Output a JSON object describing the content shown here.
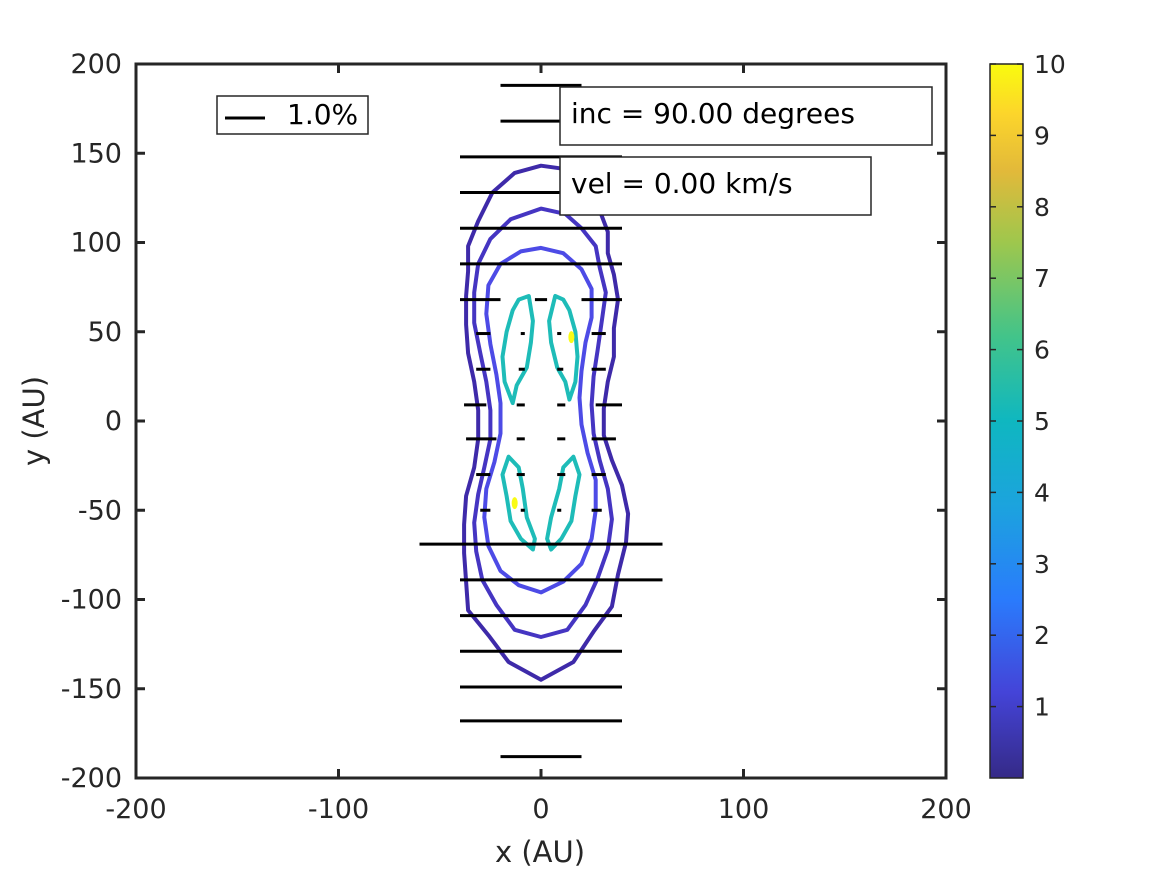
{
  "chart_data": {
    "type": "contour",
    "xlabel": "x (AU)",
    "ylabel": "y (AU)",
    "xlim": [
      -200,
      200
    ],
    "ylim": [
      -200,
      200
    ],
    "xticks": [
      -200,
      -100,
      0,
      100,
      200
    ],
    "yticks": [
      200,
      150,
      100,
      50,
      0,
      -50,
      -100,
      -150,
      -200
    ],
    "annotations": {
      "inc": "inc = 90.00 degrees",
      "vel": "vel =  0.00 km/s",
      "legend_scale": "1.0%"
    },
    "colorbar": {
      "range": [
        0,
        10
      ],
      "ticks": [
        10,
        9,
        8,
        7,
        6,
        5,
        4,
        3,
        2,
        1
      ],
      "colors": [
        "#3e26a8",
        "#4a48e8",
        "#2f7efd",
        "#1ba8dc",
        "#13bdb5",
        "#4bc78a",
        "#9dc84f",
        "#e4bb3e",
        "#fbd62f",
        "#f9fb15"
      ]
    },
    "contours": [
      {
        "level": 0.5,
        "color": "#3e2aa9",
        "points": [
          [
            0,
            143
          ],
          [
            13,
            141
          ],
          [
            22,
            131
          ],
          [
            29,
            118
          ],
          [
            33,
            106
          ],
          [
            33,
            94
          ],
          [
            36,
            82
          ],
          [
            38,
            68
          ],
          [
            36,
            52
          ],
          [
            36,
            36
          ],
          [
            33,
            22
          ],
          [
            31,
            7
          ],
          [
            31,
            -8
          ],
          [
            35,
            -22
          ],
          [
            40,
            -36
          ],
          [
            43,
            -52
          ],
          [
            42,
            -68
          ],
          [
            38,
            -86
          ],
          [
            35,
            -104
          ],
          [
            26,
            -118
          ],
          [
            16,
            -135
          ],
          [
            0,
            -145
          ],
          [
            -16,
            -135
          ],
          [
            -26,
            -120
          ],
          [
            -36,
            -106
          ],
          [
            -37,
            -90
          ],
          [
            -38,
            -74
          ],
          [
            -38,
            -58
          ],
          [
            -37,
            -42
          ],
          [
            -33,
            -26
          ],
          [
            -31,
            -10
          ],
          [
            -31,
            6
          ],
          [
            -33,
            22
          ],
          [
            -36,
            38
          ],
          [
            -37,
            54
          ],
          [
            -37,
            70
          ],
          [
            -36,
            84
          ],
          [
            -36,
            98
          ],
          [
            -31,
            112
          ],
          [
            -24,
            128
          ],
          [
            -13,
            139
          ]
        ]
      },
      {
        "level": 1.0,
        "color": "#4535c2",
        "points": [
          [
            0,
            119
          ],
          [
            12,
            116
          ],
          [
            20,
            108
          ],
          [
            27,
            98
          ],
          [
            29,
            86
          ],
          [
            32,
            72
          ],
          [
            30,
            56
          ],
          [
            28,
            40
          ],
          [
            26,
            25
          ],
          [
            25,
            9
          ],
          [
            26,
            -7
          ],
          [
            29,
            -22
          ],
          [
            33,
            -38
          ],
          [
            35,
            -55
          ],
          [
            33,
            -72
          ],
          [
            28,
            -88
          ],
          [
            22,
            -103
          ],
          [
            13,
            -117
          ],
          [
            0,
            -121
          ],
          [
            -13,
            -117
          ],
          [
            -22,
            -103
          ],
          [
            -29,
            -89
          ],
          [
            -32,
            -73
          ],
          [
            -33,
            -57
          ],
          [
            -31,
            -41
          ],
          [
            -28,
            -26
          ],
          [
            -25,
            -10
          ],
          [
            -25,
            6
          ],
          [
            -27,
            22
          ],
          [
            -30,
            38
          ],
          [
            -33,
            55
          ],
          [
            -33,
            72
          ],
          [
            -31,
            88
          ],
          [
            -25,
            102
          ],
          [
            -15,
            113
          ]
        ]
      },
      {
        "level": 2.0,
        "color": "#4d4be6",
        "points": [
          [
            0,
            97
          ],
          [
            11,
            94
          ],
          [
            20,
            85
          ],
          [
            25,
            74
          ],
          [
            25,
            58
          ],
          [
            22,
            44
          ],
          [
            20,
            28
          ],
          [
            19,
            13
          ],
          [
            20,
            -2
          ],
          [
            23,
            -18
          ],
          [
            27,
            -33
          ],
          [
            27,
            -50
          ],
          [
            25,
            -66
          ],
          [
            20,
            -80
          ],
          [
            11,
            -90
          ],
          [
            0,
            -96
          ],
          [
            -11,
            -92
          ],
          [
            -20,
            -84
          ],
          [
            -26,
            -70
          ],
          [
            -28,
            -54
          ],
          [
            -27,
            -38
          ],
          [
            -23,
            -23
          ],
          [
            -20,
            -7
          ],
          [
            -20,
            10
          ],
          [
            -22,
            26
          ],
          [
            -25,
            43
          ],
          [
            -27,
            60
          ],
          [
            -26,
            76
          ],
          [
            -20,
            88
          ],
          [
            -10,
            95
          ]
        ]
      },
      {
        "level": 5.0,
        "color": "#1ebcb8",
        "points": [
          [
            -11,
            68
          ],
          [
            -6,
            70
          ],
          [
            -4,
            56
          ],
          [
            -5,
            44
          ],
          [
            -7,
            30
          ],
          [
            -12,
            20
          ],
          [
            -14,
            10
          ],
          [
            -18,
            22
          ],
          [
            -19,
            36
          ],
          [
            -17,
            50
          ],
          [
            -14,
            62
          ]
        ]
      },
      {
        "level": 5.0,
        "color": "#1ebcb8",
        "points": [
          [
            11,
            68
          ],
          [
            7,
            70
          ],
          [
            4,
            56
          ],
          [
            5,
            44
          ],
          [
            8,
            30
          ],
          [
            12,
            22
          ],
          [
            14,
            12
          ],
          [
            17,
            22
          ],
          [
            18,
            36
          ],
          [
            17,
            50
          ],
          [
            14,
            62
          ]
        ]
      },
      {
        "level": 5.0,
        "color": "#1ebcb8",
        "points": [
          [
            -16,
            -20
          ],
          [
            -11,
            -26
          ],
          [
            -9,
            -38
          ],
          [
            -7,
            -54
          ],
          [
            -3,
            -66
          ],
          [
            -4,
            -72
          ],
          [
            -10,
            -66
          ],
          [
            -15,
            -56
          ],
          [
            -17,
            -42
          ],
          [
            -19,
            -30
          ]
        ]
      },
      {
        "level": 5.0,
        "color": "#1ebcb8",
        "points": [
          [
            16,
            -20
          ],
          [
            11,
            -26
          ],
          [
            9,
            -38
          ],
          [
            5,
            -54
          ],
          [
            3,
            -66
          ],
          [
            5,
            -72
          ],
          [
            10,
            -66
          ],
          [
            15,
            -56
          ],
          [
            17,
            -42
          ],
          [
            19,
            -30
          ]
        ]
      }
    ],
    "hotspots": [
      {
        "x": 15,
        "y": 47,
        "level": 10
      },
      {
        "x": -13,
        "y": -46,
        "level": 10
      }
    ],
    "polarization_vectors": [
      {
        "y": 188,
        "x1": -20,
        "x2": 20
      },
      {
        "y": 168,
        "x1": -20,
        "x2": 20
      },
      {
        "y": 148,
        "x1": -40,
        "x2": 40
      },
      {
        "y": 128,
        "x1": -40,
        "x2": 40
      },
      {
        "y": 108,
        "x1": -40,
        "x2": 40
      },
      {
        "y": 88,
        "x1": -40,
        "x2": 40
      },
      {
        "y": 68,
        "segments": [
          [
            -40,
            -20
          ],
          [
            -3,
            3
          ],
          [
            20,
            40
          ]
        ]
      },
      {
        "y": 49,
        "segments": [
          [
            -32,
            -25
          ],
          [
            -10,
            -8
          ],
          [
            8,
            10
          ],
          [
            25,
            32
          ]
        ]
      },
      {
        "y": 29,
        "segments": [
          [
            -32,
            -25
          ],
          [
            -11,
            -8
          ],
          [
            8,
            11
          ],
          [
            25,
            32
          ]
        ]
      },
      {
        "y": 9,
        "segments": [
          [
            -38,
            -27
          ],
          [
            -12,
            -8
          ],
          [
            8,
            12
          ],
          [
            27,
            40
          ]
        ]
      },
      {
        "y": -10,
        "segments": [
          [
            -37,
            -22
          ],
          [
            -12,
            -8
          ],
          [
            8,
            12
          ],
          [
            25,
            37
          ]
        ]
      },
      {
        "y": -30,
        "segments": [
          [
            -32,
            -25
          ],
          [
            -12,
            -8
          ],
          [
            8,
            12
          ],
          [
            25,
            32
          ]
        ]
      },
      {
        "y": -50,
        "segments": [
          [
            -30,
            -25
          ],
          [
            -10,
            -8
          ],
          [
            8,
            10
          ],
          [
            25,
            30
          ]
        ]
      },
      {
        "y": -69,
        "x1": -60,
        "x2": 60
      },
      {
        "y": -89,
        "x1": -40,
        "x2": 60
      },
      {
        "y": -109,
        "x1": -40,
        "x2": 40
      },
      {
        "y": -129,
        "x1": -40,
        "x2": 40
      },
      {
        "y": -149,
        "x1": -40,
        "x2": 40
      },
      {
        "y": -168,
        "x1": -40,
        "x2": 40
      },
      {
        "y": -188,
        "x1": -20,
        "x2": 20
      }
    ]
  }
}
